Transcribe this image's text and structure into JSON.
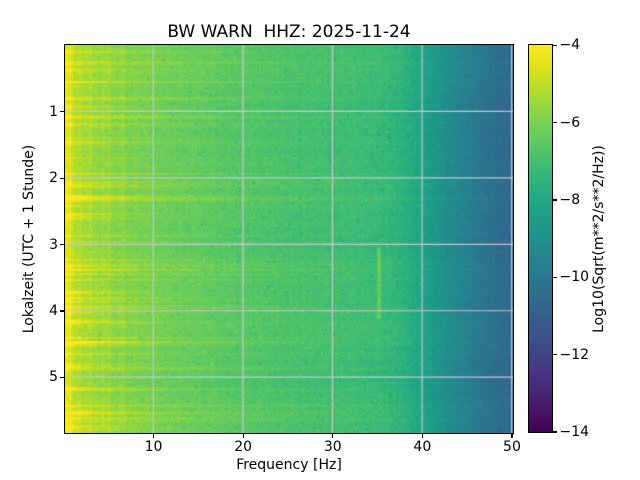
{
  "figure": {
    "background": "#ffffff",
    "text_color": "#000000"
  },
  "chart_data": {
    "type": "heatmap",
    "subtype": "spectrogram",
    "title": "BW WARN  HHZ: 2025-11-24",
    "station": "BW WARN",
    "channel": "HHZ",
    "date": "2025-11-24",
    "xlabel": "Frequency [Hz]",
    "ylabel": "Lokalzeit (UTC + 1 Stunde)",
    "colorbar_label": "Log10(Sqrt(m**2/s**2/Hz))",
    "colormap": "viridis",
    "xlim": [
      0.15,
      50.15
    ],
    "ylim_hours": [
      0,
      5.84
    ],
    "y_axis_inverted": true,
    "clim": [
      -14,
      -4
    ],
    "x_ticks": [
      10,
      20,
      30,
      40,
      50
    ],
    "x_tick_labels": [
      "10",
      "20",
      "30",
      "40",
      "50"
    ],
    "y_ticks": [
      1,
      2,
      3,
      4,
      5
    ],
    "y_tick_labels": [
      "1",
      "2",
      "3",
      "4",
      "5"
    ],
    "colorbar_ticks": [
      -4,
      -6,
      -8,
      -10,
      -12,
      -14
    ],
    "colorbar_tick_labels": [
      "−4",
      "−6",
      "−8",
      "−10",
      "−12",
      "−14"
    ],
    "grid": true,
    "grid_color": "rgba(205,202,208,0.95)",
    "power_profile_db": [
      [
        0.15,
        -4.35
      ],
      [
        0.5,
        -4.6
      ],
      [
        1.0,
        -4.95
      ],
      [
        2.0,
        -5.3
      ],
      [
        3.0,
        -5.5
      ],
      [
        5.0,
        -5.75
      ],
      [
        8.0,
        -6.0
      ],
      [
        12.0,
        -6.3
      ],
      [
        16.0,
        -6.5
      ],
      [
        20.0,
        -6.7
      ],
      [
        25.0,
        -6.9
      ],
      [
        30.0,
        -7.05
      ],
      [
        34.0,
        -7.2
      ],
      [
        37.0,
        -7.4
      ],
      [
        39.0,
        -7.9
      ],
      [
        41.0,
        -8.5
      ],
      [
        43.0,
        -9.2
      ],
      [
        46.0,
        -9.9
      ],
      [
        48.0,
        -10.3
      ],
      [
        50.15,
        -10.65
      ]
    ],
    "notable_events": [
      {
        "t_h": 0.35,
        "amp": 0.7,
        "f_extent_hz": 8
      },
      {
        "t_h": 0.9,
        "amp": 0.9,
        "f_extent_hz": 6
      },
      {
        "t_h": 1.45,
        "amp": 0.8,
        "f_extent_hz": 10
      },
      {
        "t_h": 2.1,
        "amp": 0.7,
        "f_extent_hz": 18
      },
      {
        "t_h": 2.25,
        "amp": 1.2,
        "f_extent_hz": 9
      },
      {
        "t_h": 2.52,
        "amp": 1.5,
        "f_extent_hz": 4
      },
      {
        "t_h": 2.58,
        "amp": 1.1,
        "f_extent_hz": 5
      },
      {
        "t_h": 3.3,
        "amp": 0.8,
        "f_extent_hz": 12
      },
      {
        "t_h": 3.7,
        "amp": 1.4,
        "f_extent_hz": 6
      },
      {
        "t_h": 3.78,
        "amp": 0.9,
        "f_extent_hz": 14
      },
      {
        "t_h": 4.15,
        "amp": 1.0,
        "f_extent_hz": 7
      },
      {
        "t_h": 4.45,
        "amp": 1.1,
        "f_extent_hz": 6
      },
      {
        "t_h": 5.15,
        "amp": 0.9,
        "f_extent_hz": 8
      },
      {
        "t_h": 5.5,
        "amp": 1.2,
        "f_extent_hz": 7
      },
      {
        "t_h": 5.72,
        "amp": 1.0,
        "f_extent_hz": 5
      }
    ],
    "narrowband_line": {
      "f_hz": 35.2,
      "t_start_h": 3.05,
      "t_end_h": 4.12,
      "amp_db": 0.85
    },
    "viridis_stops": [
      "#440154",
      "#471365",
      "#482475",
      "#463480",
      "#414487",
      "#3b528b",
      "#355f8d",
      "#2f6c8e",
      "#2a788e",
      "#25848e",
      "#21918c",
      "#1e9c89",
      "#22a884",
      "#2fb47c",
      "#44bf70",
      "#5ec962",
      "#7ad151",
      "#9bd93c",
      "#bddf26",
      "#dfe318",
      "#fde725"
    ]
  }
}
